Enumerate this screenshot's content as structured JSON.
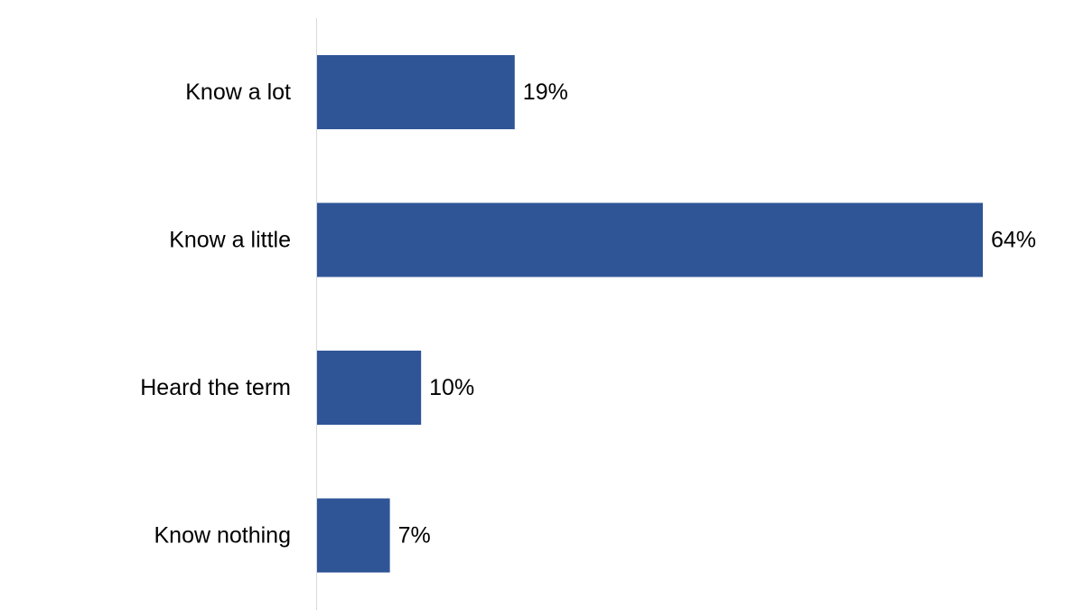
{
  "chart_data": {
    "type": "bar",
    "orientation": "horizontal",
    "categories": [
      "Know a lot",
      "Know a little",
      "Heard the term",
      "Know nothing"
    ],
    "values": [
      19,
      64,
      10,
      7
    ],
    "value_labels": [
      "19%",
      "64%",
      "10%",
      "7%"
    ],
    "unit": "%",
    "title": "",
    "xlabel": "",
    "ylabel": "",
    "xlim": [
      0,
      64
    ],
    "grid": false,
    "legend": "none",
    "colors": {
      "bar": "#2f5597",
      "axis": "#d9d9d9",
      "text": "#000000"
    }
  }
}
